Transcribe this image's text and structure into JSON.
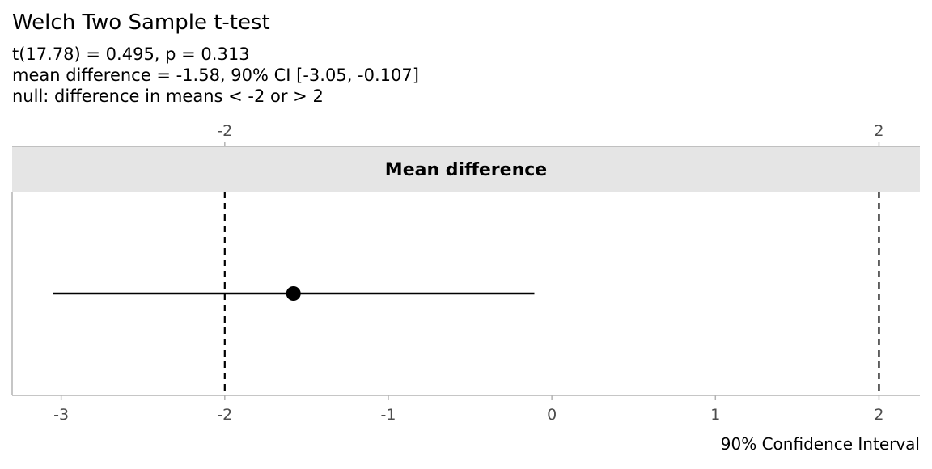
{
  "chart_data": {
    "type": "scatter",
    "title": "Welch Two Sample t-test",
    "subtitle_lines": [
      "t(17.78) = 0.495, p = 0.313",
      "mean difference = -1.58, 90% CI [-3.05, -0.107]",
      "null: difference in means < -2 or > 2"
    ],
    "strip_label": "Mean difference",
    "xlabel": "90% Confidence Interval",
    "xlim": [
      -3.3,
      2.25
    ],
    "x_ticks": [
      -3,
      -2,
      -1,
      0,
      1,
      2
    ],
    "x_tick_labels": [
      "-3",
      "-2",
      "-1",
      "0",
      "1",
      "2"
    ],
    "top_ticks": [
      -2,
      2
    ],
    "top_tick_labels": [
      "-2",
      "2"
    ],
    "estimate": -1.58,
    "ci_low": -3.05,
    "ci_high": -0.107,
    "reference_lines": [
      -2,
      2
    ],
    "grid": false,
    "colors": {
      "strip": "#e5e5e5",
      "point": "#000000",
      "axis": "#b3b3b3",
      "tick_text": "#4d4d4d"
    }
  }
}
